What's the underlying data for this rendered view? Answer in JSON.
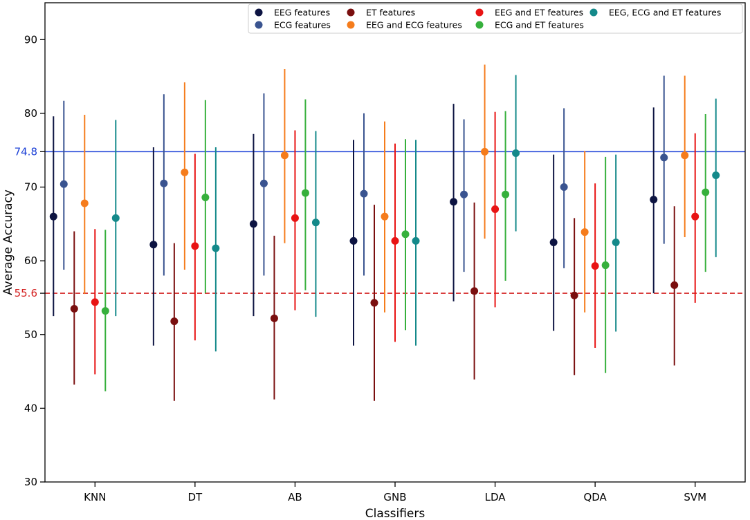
{
  "chart_data": {
    "type": "scatter",
    "subtype": "point-with-error-bars",
    "title": "",
    "xlabel": "Classifiers",
    "ylabel": "Average Accuracy",
    "ylim": [
      30,
      95
    ],
    "yticks": [
      30,
      40,
      50,
      60,
      70,
      80,
      90
    ],
    "grid": false,
    "legend_position": "top-right",
    "categories": [
      "KNN",
      "DT",
      "AB",
      "GNB",
      "LDA",
      "QDA",
      "SVM"
    ],
    "series": [
      {
        "name": "EEG features",
        "color": "#0d1442",
        "means": [
          66.0,
          62.2,
          65.0,
          62.7,
          68.0,
          62.5,
          68.3
        ],
        "lows": [
          52.5,
          48.5,
          52.5,
          48.5,
          54.5,
          50.5,
          55.6
        ],
        "highs": [
          79.6,
          75.4,
          77.2,
          76.4,
          81.3,
          74.4,
          80.8
        ]
      },
      {
        "name": "ECG features",
        "color": "#3a5490",
        "means": [
          70.4,
          70.5,
          70.5,
          69.1,
          69.0,
          70.0,
          74.0
        ],
        "lows": [
          58.8,
          58.0,
          58.0,
          58.0,
          58.5,
          59.0,
          62.3
        ],
        "highs": [
          81.7,
          82.6,
          82.7,
          80.0,
          79.2,
          80.7,
          85.1
        ]
      },
      {
        "name": "ET features",
        "color": "#7a0f0f",
        "means": [
          53.5,
          51.8,
          52.2,
          54.3,
          55.9,
          55.3,
          56.7
        ],
        "lows": [
          43.2,
          41.0,
          41.2,
          41.0,
          43.9,
          44.5,
          45.8
        ],
        "highs": [
          64.0,
          62.4,
          63.4,
          67.6,
          67.9,
          65.8,
          67.4
        ]
      },
      {
        "name": "EEG and ECG features",
        "color": "#f57c1c",
        "means": [
          67.8,
          72.0,
          74.3,
          66.0,
          74.8,
          63.9,
          74.3
        ],
        "lows": [
          55.5,
          58.8,
          62.4,
          53.0,
          63.0,
          53.0,
          63.2
        ],
        "highs": [
          79.8,
          84.2,
          86.0,
          78.9,
          86.6,
          74.9,
          85.1
        ]
      },
      {
        "name": "EEG and ET features",
        "color": "#e81414",
        "means": [
          54.4,
          62.0,
          65.8,
          62.7,
          67.0,
          59.3,
          66.0
        ],
        "lows": [
          44.6,
          49.2,
          53.3,
          49.0,
          53.7,
          48.2,
          54.3
        ],
        "highs": [
          64.3,
          74.5,
          77.7,
          75.9,
          80.2,
          70.5,
          77.3
        ]
      },
      {
        "name": "ECG and ET features",
        "color": "#36b03c",
        "means": [
          53.2,
          68.6,
          69.2,
          63.6,
          69.0,
          59.4,
          69.3
        ],
        "lows": [
          42.3,
          55.6,
          56.0,
          50.6,
          57.3,
          44.8,
          58.5
        ],
        "highs": [
          64.2,
          81.8,
          81.9,
          76.5,
          80.3,
          74.1,
          79.9
        ]
      },
      {
        "name": "EEG, ECG and ET features",
        "color": "#14898a",
        "means": [
          65.8,
          61.7,
          65.2,
          62.7,
          74.6,
          62.5,
          71.6
        ],
        "lows": [
          52.5,
          47.7,
          52.4,
          48.5,
          64.0,
          50.4,
          60.5
        ],
        "highs": [
          79.1,
          75.4,
          77.6,
          76.4,
          85.2,
          74.4,
          82.0
        ]
      }
    ],
    "reference_lines": [
      {
        "value": 74.8,
        "label": "74.8",
        "color": "#1a3fd6",
        "style": "solid"
      },
      {
        "value": 55.6,
        "label": "55.6",
        "color": "#d42020",
        "style": "dashed"
      }
    ]
  }
}
